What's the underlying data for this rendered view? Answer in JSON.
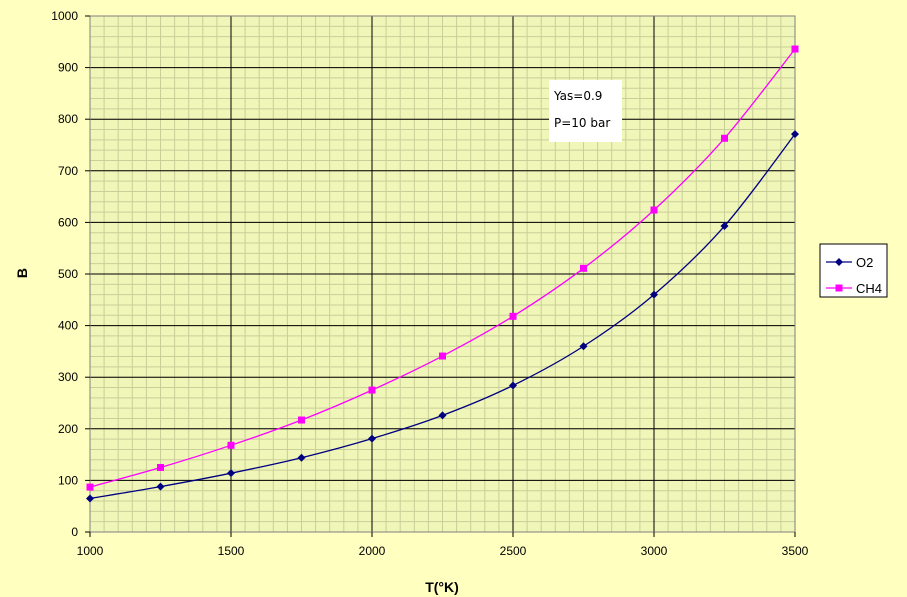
{
  "chart_data": {
    "type": "line",
    "title": "",
    "xlabel": "T(°K)",
    "ylabel": "B",
    "x": [
      1000,
      1250,
      1500,
      1750,
      2000,
      2250,
      2500,
      2750,
      3000,
      3250,
      3500
    ],
    "xlim": [
      1000,
      3500
    ],
    "ylim": [
      0,
      1000
    ],
    "x_ticks": [
      1000,
      1500,
      2000,
      2500,
      3000,
      3500
    ],
    "y_ticks": [
      0,
      100,
      200,
      300,
      400,
      500,
      600,
      700,
      800,
      900,
      1000
    ],
    "grid": true,
    "legend_position": "right",
    "series": [
      {
        "name": "O2",
        "color": "#000080",
        "marker": "diamond",
        "values": [
          65,
          88,
          114,
          144,
          181,
          226,
          284,
          360,
          460,
          593,
          771
        ]
      },
      {
        "name": "CH4",
        "color": "#ff00ff",
        "marker": "square",
        "values": [
          87,
          125,
          168,
          217,
          275,
          341,
          418,
          511,
          624,
          763,
          936
        ]
      }
    ],
    "annotations": [
      "Yas=0.9",
      "P=10 bar"
    ]
  },
  "colors": {
    "page_background": "#ffffc0",
    "plot_background": "#f0f5b8",
    "major_grid": "#000000",
    "minor_grid": "#c8cf98"
  }
}
